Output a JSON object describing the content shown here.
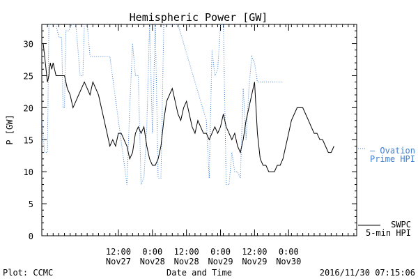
{
  "chart_data": {
    "type": "line",
    "title": "Hemispheric Power [GW]",
    "xlabel": "Date and Time",
    "ylabel": "P [GW]",
    "ylim": [
      0,
      33
    ],
    "xlim": [
      "2016-11-26T09:00",
      "2016-12-01T00:00"
    ],
    "y_ticks": [
      0,
      5,
      10,
      15,
      20,
      25,
      30
    ],
    "x_ticks": [
      {
        "line1": "12:00",
        "line2": "Nov27",
        "t": "2016-11-27T12:00"
      },
      {
        "line1": "0:00",
        "line2": "Nov28",
        "t": "2016-11-28T00:00"
      },
      {
        "line1": "12:00",
        "line2": "Nov28",
        "t": "2016-11-28T12:00"
      },
      {
        "line1": "0:00",
        "line2": "Nov29",
        "t": "2016-11-29T00:00"
      },
      {
        "line1": "12:00",
        "line2": "Nov29",
        "t": "2016-11-29T12:00"
      },
      {
        "line1": "0:00",
        "line2": "Nov30",
        "t": "2016-11-30T00:00"
      }
    ],
    "x_minor_tick_hours": 2,
    "grid": false,
    "legend_placement": "right",
    "series": [
      {
        "name": "SWPC 5-min HPI",
        "legend_lines": [
          "SWPC",
          "5-min HPI"
        ],
        "color": "#000000",
        "style": "solid",
        "points": [
          [
            "2016-11-26T09:00",
            30
          ],
          [
            "2016-11-26T09:30",
            30
          ],
          [
            "2016-11-26T10:00",
            28
          ],
          [
            "2016-11-26T10:30",
            26
          ],
          [
            "2016-11-26T11:00",
            24
          ],
          [
            "2016-11-26T11:30",
            25
          ],
          [
            "2016-11-26T12:00",
            27
          ],
          [
            "2016-11-26T12:30",
            26
          ],
          [
            "2016-11-26T13:00",
            27
          ],
          [
            "2016-11-26T13:30",
            26
          ],
          [
            "2016-11-26T14:00",
            25
          ],
          [
            "2016-11-26T17:00",
            25
          ],
          [
            "2016-11-26T18:00",
            23
          ],
          [
            "2016-11-26T19:00",
            22
          ],
          [
            "2016-11-26T20:00",
            20
          ],
          [
            "2016-11-26T21:00",
            21
          ],
          [
            "2016-11-26T22:00",
            22
          ],
          [
            "2016-11-26T23:00",
            23
          ],
          [
            "2016-11-27T00:00",
            24
          ],
          [
            "2016-11-27T01:00",
            23
          ],
          [
            "2016-11-27T02:00",
            22
          ],
          [
            "2016-11-27T03:00",
            24
          ],
          [
            "2016-11-27T04:00",
            23
          ],
          [
            "2016-11-27T05:00",
            22
          ],
          [
            "2016-11-27T06:00",
            20
          ],
          [
            "2016-11-27T07:00",
            18
          ],
          [
            "2016-11-27T08:00",
            16
          ],
          [
            "2016-11-27T09:00",
            14
          ],
          [
            "2016-11-27T10:00",
            15
          ],
          [
            "2016-11-27T11:00",
            14
          ],
          [
            "2016-11-27T12:00",
            16
          ],
          [
            "2016-11-27T13:00",
            16
          ],
          [
            "2016-11-27T14:00",
            15
          ],
          [
            "2016-11-27T15:00",
            14
          ],
          [
            "2016-11-27T16:00",
            12
          ],
          [
            "2016-11-27T17:00",
            13
          ],
          [
            "2016-11-27T18:00",
            16
          ],
          [
            "2016-11-27T19:00",
            17
          ],
          [
            "2016-11-27T20:00",
            16
          ],
          [
            "2016-11-27T21:00",
            17
          ],
          [
            "2016-11-27T22:00",
            14
          ],
          [
            "2016-11-27T23:00",
            12
          ],
          [
            "2016-11-28T00:00",
            11
          ],
          [
            "2016-11-28T01:00",
            11
          ],
          [
            "2016-11-28T02:00",
            12
          ],
          [
            "2016-11-28T03:00",
            14
          ],
          [
            "2016-11-28T04:00",
            18
          ],
          [
            "2016-11-28T05:00",
            21
          ],
          [
            "2016-11-28T06:00",
            22
          ],
          [
            "2016-11-28T07:00",
            23
          ],
          [
            "2016-11-28T08:00",
            21
          ],
          [
            "2016-11-28T09:00",
            19
          ],
          [
            "2016-11-28T10:00",
            18
          ],
          [
            "2016-11-28T11:00",
            20
          ],
          [
            "2016-11-28T12:00",
            21
          ],
          [
            "2016-11-28T13:00",
            19
          ],
          [
            "2016-11-28T14:00",
            17
          ],
          [
            "2016-11-28T15:00",
            16
          ],
          [
            "2016-11-28T16:00",
            18
          ],
          [
            "2016-11-28T17:00",
            17
          ],
          [
            "2016-11-28T18:00",
            16
          ],
          [
            "2016-11-28T19:00",
            16
          ],
          [
            "2016-11-28T20:00",
            15
          ],
          [
            "2016-11-28T21:00",
            16
          ],
          [
            "2016-11-28T22:00",
            17
          ],
          [
            "2016-11-28T23:00",
            16
          ],
          [
            "2016-11-29T00:00",
            17
          ],
          [
            "2016-11-29T01:00",
            19
          ],
          [
            "2016-11-29T02:00",
            17
          ],
          [
            "2016-11-29T03:00",
            16
          ],
          [
            "2016-11-29T04:00",
            15
          ],
          [
            "2016-11-29T05:00",
            16
          ],
          [
            "2016-11-29T06:00",
            14
          ],
          [
            "2016-11-29T07:00",
            13
          ],
          [
            "2016-11-29T08:00",
            15
          ],
          [
            "2016-11-29T09:00",
            18
          ],
          [
            "2016-11-29T10:00",
            20
          ],
          [
            "2016-11-29T11:00",
            22
          ],
          [
            "2016-11-29T12:00",
            24
          ],
          [
            "2016-11-29T13:00",
            16
          ],
          [
            "2016-11-29T14:00",
            12
          ],
          [
            "2016-11-29T15:00",
            11
          ],
          [
            "2016-11-29T16:00",
            11
          ],
          [
            "2016-11-29T17:00",
            10
          ],
          [
            "2016-11-29T18:00",
            10
          ],
          [
            "2016-11-29T19:00",
            10
          ],
          [
            "2016-11-29T20:00",
            11
          ],
          [
            "2016-11-29T21:00",
            11
          ],
          [
            "2016-11-29T22:00",
            12
          ],
          [
            "2016-11-29T23:00",
            14
          ],
          [
            "2016-11-30T00:00",
            16
          ],
          [
            "2016-11-30T01:00",
            18
          ],
          [
            "2016-11-30T02:00",
            19
          ],
          [
            "2016-11-30T03:00",
            20
          ],
          [
            "2016-11-30T04:00",
            20
          ],
          [
            "2016-11-30T05:00",
            20
          ],
          [
            "2016-11-30T06:00",
            19
          ],
          [
            "2016-11-30T07:00",
            18
          ],
          [
            "2016-11-30T08:00",
            17
          ],
          [
            "2016-11-30T09:00",
            16
          ],
          [
            "2016-11-30T10:00",
            16
          ],
          [
            "2016-11-30T11:00",
            15
          ],
          [
            "2016-11-30T12:00",
            15
          ],
          [
            "2016-11-30T13:00",
            14
          ],
          [
            "2016-11-30T14:00",
            13
          ],
          [
            "2016-11-30T15:00",
            13
          ],
          [
            "2016-11-30T16:00",
            14
          ]
        ]
      },
      {
        "name": "Ovation Prime HPI",
        "legend_lines": [
          "— Ovation",
          "Prime HPI"
        ],
        "color": "#3f7fd0",
        "style": "dotted",
        "points": [
          [
            "2016-11-26T09:00",
            18
          ],
          [
            "2016-11-26T10:00",
            13
          ],
          [
            "2016-11-26T11:00",
            13
          ],
          [
            "2016-11-26T11:30",
            33
          ],
          [
            "2016-11-26T13:00",
            33
          ],
          [
            "2016-11-26T14:00",
            33
          ],
          [
            "2016-11-26T15:00",
            31
          ],
          [
            "2016-11-26T16:00",
            31
          ],
          [
            "2016-11-26T16:30",
            20
          ],
          [
            "2016-11-26T17:00",
            20
          ],
          [
            "2016-11-26T17:30",
            32
          ],
          [
            "2016-11-26T18:30",
            32
          ],
          [
            "2016-11-26T19:30",
            33
          ],
          [
            "2016-11-26T21:00",
            33
          ],
          [
            "2016-11-26T22:30",
            25
          ],
          [
            "2016-11-26T23:30",
            25
          ],
          [
            "2016-11-27T00:00",
            33
          ],
          [
            "2016-11-27T01:00",
            33
          ],
          [
            "2016-11-27T02:00",
            28
          ],
          [
            "2016-11-27T09:00",
            28
          ],
          [
            "2016-11-27T15:00",
            8
          ],
          [
            "2016-11-27T16:00",
            20
          ],
          [
            "2016-11-27T17:00",
            30
          ],
          [
            "2016-11-27T18:00",
            25
          ],
          [
            "2016-11-27T19:00",
            25
          ],
          [
            "2016-11-27T20:00",
            8
          ],
          [
            "2016-11-27T21:00",
            9
          ],
          [
            "2016-11-27T22:00",
            17
          ],
          [
            "2016-11-27T23:00",
            33
          ],
          [
            "2016-11-28T00:00",
            16
          ],
          [
            "2016-11-28T01:00",
            33
          ],
          [
            "2016-11-28T02:00",
            9
          ],
          [
            "2016-11-28T03:00",
            9
          ],
          [
            "2016-11-28T04:00",
            33
          ],
          [
            "2016-11-28T09:00",
            33
          ],
          [
            "2016-11-28T19:00",
            18
          ],
          [
            "2016-11-28T20:00",
            9
          ],
          [
            "2016-11-28T21:00",
            29
          ],
          [
            "2016-11-28T22:00",
            25
          ],
          [
            "2016-11-28T23:00",
            26
          ],
          [
            "2016-11-29T00:00",
            33
          ],
          [
            "2016-11-29T01:00",
            33
          ],
          [
            "2016-11-29T02:00",
            8
          ],
          [
            "2016-11-29T03:00",
            8
          ],
          [
            "2016-11-29T04:00",
            13
          ],
          [
            "2016-11-29T05:00",
            10
          ],
          [
            "2016-11-29T06:00",
            10
          ],
          [
            "2016-11-29T07:00",
            9
          ],
          [
            "2016-11-29T08:00",
            23
          ],
          [
            "2016-11-29T09:00",
            15
          ],
          [
            "2016-11-29T10:00",
            23
          ],
          [
            "2016-11-29T11:00",
            28
          ],
          [
            "2016-11-29T12:00",
            27
          ],
          [
            "2016-11-29T13:00",
            24
          ],
          [
            "2016-11-29T22:00",
            24
          ]
        ]
      }
    ]
  },
  "footer": {
    "plot_credit": "Plot: CCMC",
    "timestamp": "2016/11/30 07:15:06"
  }
}
